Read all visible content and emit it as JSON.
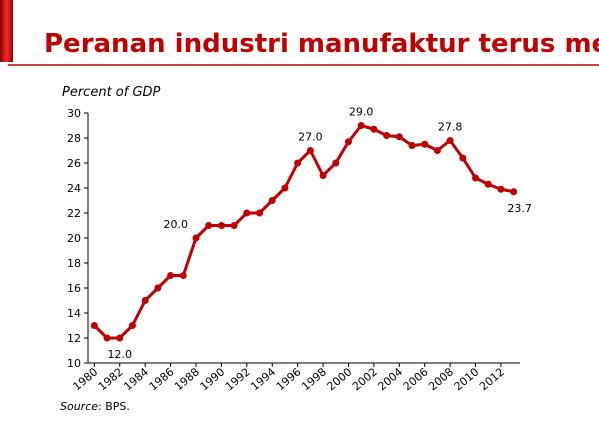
{
  "chart_data": {
    "type": "line",
    "title": "Peranan industri manufaktur terus merosot",
    "subtitle": "Percent of GDP",
    "source": {
      "label": "Source",
      "text": ": BPS."
    },
    "x": [
      1980,
      1981,
      1982,
      1983,
      1984,
      1985,
      1986,
      1987,
      1988,
      1989,
      1990,
      1991,
      1992,
      1993,
      1994,
      1995,
      1996,
      1997,
      1998,
      1999,
      2000,
      2001,
      2002,
      2003,
      2004,
      2005,
      2006,
      2007,
      2008,
      2009,
      2010,
      2011,
      2012,
      2013
    ],
    "series": [
      {
        "color": "#c00000",
        "values": [
          13.0,
          12.0,
          12.0,
          13.0,
          15.0,
          16.0,
          17.0,
          17.0,
          20.0,
          21.0,
          21.0,
          21.0,
          22.0,
          22.0,
          23.0,
          24.0,
          26.0,
          27.0,
          25.0,
          26.0,
          27.7,
          29.0,
          28.7,
          28.2,
          28.1,
          27.4,
          27.5,
          27.0,
          27.8,
          26.4,
          24.8,
          24.3,
          23.9,
          23.7
        ],
        "value_labels": [
          null,
          null,
          "12.0",
          null,
          null,
          null,
          null,
          null,
          "20.0",
          null,
          null,
          null,
          null,
          null,
          null,
          null,
          null,
          "27.0",
          null,
          null,
          null,
          "29.0",
          null,
          null,
          null,
          null,
          null,
          null,
          "27.8",
          null,
          null,
          null,
          null,
          "23.7"
        ]
      }
    ],
    "xlim": [
      1979.5,
      2013.5
    ],
    "xticks": [
      1980,
      1982,
      1984,
      1986,
      1988,
      1990,
      1992,
      1994,
      1996,
      1998,
      2000,
      2002,
      2004,
      2006,
      2008,
      2010,
      2012
    ],
    "ylim": [
      10,
      30
    ],
    "yticks": [
      10,
      12,
      14,
      16,
      18,
      20,
      22,
      24,
      26,
      28,
      30
    ],
    "grid": false
  }
}
